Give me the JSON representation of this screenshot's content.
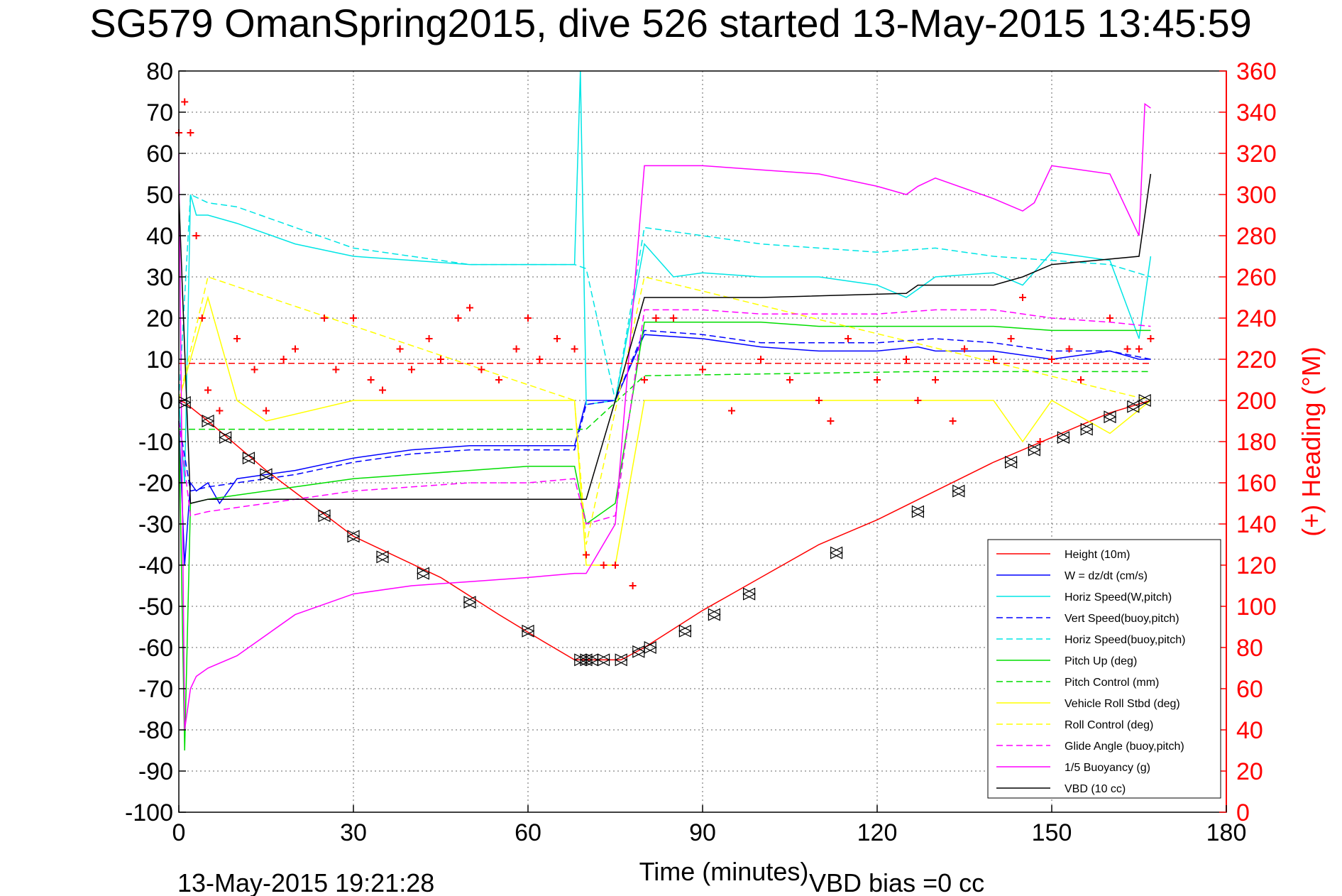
{
  "chart_data": {
    "type": "line",
    "title": "SG579 OmanSpring2015, dive 526 started 13-May-2015 13:45:59",
    "xlabel": "Time (minutes)",
    "ylabel": "",
    "ylabel_right": "(+) Heading (°M)",
    "footer_left": "13-May-2015 19:21:28",
    "footer_right": "VBD bias =0 cc",
    "xlim": [
      0,
      180
    ],
    "ylim": [
      -100,
      80
    ],
    "ylim_right": [
      0,
      360
    ],
    "x_ticks": [
      "0",
      "30",
      "60",
      "90",
      "120",
      "150",
      "180"
    ],
    "y_ticks": [
      "80",
      "70",
      "60",
      "50",
      "40",
      "30",
      "20",
      "10",
      "0",
      "-10",
      "-20",
      "-30",
      "-40",
      "-50",
      "-60",
      "-70",
      "-80",
      "-90",
      "-100"
    ],
    "y_ticks_right": [
      "360",
      "340",
      "320",
      "300",
      "280",
      "260",
      "240",
      "220",
      "200",
      "180",
      "160",
      "140",
      "120",
      "100",
      "80",
      "60",
      "40",
      "20",
      "0"
    ],
    "grid": true,
    "legend_position": "bottom-right",
    "series": [
      {
        "name": "Height (10m)",
        "color": "#ff0000",
        "style": "solid",
        "x": [
          0,
          1,
          5,
          15,
          30,
          45,
          55,
          62,
          68,
          70,
          73,
          76,
          80,
          90,
          100,
          110,
          120,
          130,
          140,
          150,
          160,
          167
        ],
        "y": [
          0,
          -0.5,
          -5,
          -17,
          -33,
          -43,
          -52,
          -58,
          -63,
          -63,
          -63,
          -63,
          -60,
          -51,
          -43,
          -35,
          -29,
          -22,
          -15,
          -9,
          -3,
          0
        ]
      },
      {
        "name": "W = dz/dt (cm/s)",
        "color": "#0000ff",
        "style": "solid",
        "x": [
          0,
          1,
          2,
          3,
          5,
          7,
          10,
          20,
          30,
          40,
          50,
          60,
          68,
          70,
          75,
          80,
          90,
          100,
          110,
          120,
          127,
          130,
          140,
          150,
          160,
          165,
          167
        ],
        "y": [
          -5,
          -40,
          -20,
          -22,
          -20,
          -25,
          -19,
          -17,
          -14,
          -12,
          -11,
          -11,
          -11,
          0,
          0,
          16,
          15,
          13,
          12,
          12,
          13,
          12,
          12,
          10,
          12,
          10,
          10
        ]
      },
      {
        "name": "Horiz Speed(W,pitch)",
        "color": "#00e5e5",
        "style": "solid",
        "x": [
          0,
          1,
          2,
          3,
          5,
          10,
          20,
          30,
          40,
          50,
          60,
          68,
          69,
          70,
          75,
          80,
          85,
          90,
          100,
          110,
          120,
          125,
          130,
          140,
          145,
          150,
          160,
          165,
          167
        ],
        "y": [
          0,
          -20,
          50,
          45,
          45,
          43,
          38,
          35,
          34,
          33,
          33,
          33,
          80,
          -1,
          0,
          38,
          30,
          31,
          30,
          30,
          28,
          25,
          30,
          31,
          28,
          36,
          34,
          15,
          35
        ]
      },
      {
        "name": "Vert Speed(buoy,pitch)",
        "color": "#0000ff",
        "style": "dashed",
        "x": [
          0,
          2,
          5,
          10,
          20,
          30,
          40,
          50,
          60,
          68,
          70,
          75,
          80,
          90,
          100,
          110,
          120,
          130,
          140,
          150,
          160,
          167
        ],
        "y": [
          -5,
          -22,
          -21,
          -20,
          -18,
          -15,
          -13,
          -12,
          -12,
          -12,
          -1,
          0,
          17,
          16,
          14,
          14,
          14,
          15,
          14,
          12,
          12,
          10
        ]
      },
      {
        "name": "Horiz Speed(buoy,pitch)",
        "color": "#00e5e5",
        "style": "dashed",
        "x": [
          0,
          2,
          5,
          10,
          20,
          30,
          40,
          50,
          60,
          68,
          70,
          75,
          80,
          90,
          100,
          110,
          120,
          130,
          140,
          150,
          160,
          167
        ],
        "y": [
          0,
          50,
          48,
          47,
          42,
          37,
          35,
          33,
          33,
          33,
          32,
          0,
          42,
          40,
          38,
          37,
          36,
          37,
          35,
          34,
          33,
          30
        ]
      },
      {
        "name": "Pitch Up (deg)",
        "color": "#00dd00",
        "style": "solid",
        "x": [
          0,
          1,
          2,
          5,
          10,
          20,
          30,
          40,
          50,
          60,
          68,
          70,
          75,
          80,
          90,
          100,
          110,
          120,
          130,
          140,
          150,
          160,
          167
        ],
        "y": [
          -5,
          -85,
          -25,
          -24,
          -23,
          -21,
          -19,
          -18,
          -17,
          -16,
          -16,
          -30,
          -25,
          19,
          19,
          19,
          18,
          18,
          18,
          18,
          17,
          17,
          17
        ]
      },
      {
        "name": "Pitch Control (mm)",
        "color": "#00dd00",
        "style": "dashed",
        "x": [
          0,
          5,
          68,
          70,
          80,
          127,
          167
        ],
        "y": [
          -7,
          -7,
          -7,
          -7,
          6,
          7,
          7
        ]
      },
      {
        "name": "Vehicle Roll Stbd (deg)",
        "color": "#ffff00",
        "style": "solid",
        "x": [
          0,
          5,
          10,
          15,
          30,
          50,
          60,
          68,
          70,
          75,
          80,
          90,
          100,
          120,
          140,
          145,
          150,
          160,
          167
        ],
        "y": [
          0,
          25,
          0,
          -5,
          0,
          0,
          0,
          0,
          -40,
          -40,
          0,
          0,
          0,
          0,
          0,
          -10,
          0,
          -8,
          0
        ]
      },
      {
        "name": "Roll Control (deg)",
        "color": "#ffff00",
        "style": "dashed",
        "x": [
          0,
          5,
          68,
          70,
          80,
          167
        ],
        "y": [
          0,
          30,
          0,
          -35,
          30,
          0
        ]
      },
      {
        "name": "Glide Angle (buoy,pitch)",
        "color": "#ff00ff",
        "style": "dashed",
        "x": [
          0,
          2,
          5,
          10,
          20,
          30,
          40,
          50,
          60,
          68,
          70,
          75,
          80,
          90,
          100,
          110,
          120,
          130,
          140,
          150,
          160,
          167
        ],
        "y": [
          -5,
          -28,
          -27,
          -26,
          -24,
          -22,
          -21,
          -20,
          -20,
          -19,
          -30,
          -28,
          22,
          22,
          21,
          21,
          21,
          22,
          22,
          20,
          19,
          18
        ]
      },
      {
        "name": "1/5 Buoyancy (g)",
        "color": "#ff00ff",
        "style": "solid",
        "x": [
          0,
          1,
          2,
          3,
          5,
          10,
          20,
          30,
          40,
          50,
          60,
          68,
          70,
          75,
          80,
          90,
          100,
          110,
          120,
          125,
          127,
          130,
          140,
          145,
          147,
          150,
          160,
          165,
          166,
          167
        ],
        "y": [
          60,
          -80,
          -70,
          -67,
          -65,
          -62,
          -52,
          -47,
          -45,
          -44,
          -43,
          -42,
          -42,
          -30,
          57,
          57,
          56,
          55,
          52,
          50,
          52,
          54,
          49,
          46,
          48,
          57,
          55,
          40,
          72,
          71
        ]
      },
      {
        "name": "VBD (10 cc)",
        "color": "#000000",
        "style": "solid",
        "x": [
          0,
          2,
          5,
          68,
          70,
          75,
          80,
          100,
          125,
          127,
          140,
          145,
          150,
          165,
          167
        ],
        "y": [
          50,
          -25,
          -24,
          -24,
          -24,
          0,
          25,
          25,
          26,
          28,
          28,
          30,
          33,
          35,
          55
        ]
      }
    ],
    "heading": {
      "name": "Heading",
      "color": "#ff0000",
      "marker": "+",
      "mean": 218,
      "x": [
        0,
        1,
        2,
        3,
        4,
        5,
        7,
        10,
        13,
        15,
        18,
        20,
        25,
        27,
        30,
        33,
        35,
        38,
        40,
        43,
        45,
        48,
        50,
        52,
        55,
        58,
        60,
        62,
        65,
        68,
        70,
        73,
        75,
        78,
        80,
        82,
        85,
        90,
        95,
        100,
        105,
        110,
        112,
        115,
        120,
        125,
        127,
        130,
        133,
        135,
        140,
        143,
        145,
        148,
        150,
        153,
        155,
        160,
        163,
        165,
        167
      ],
      "y": [
        330,
        345,
        330,
        280,
        240,
        205,
        195,
        230,
        215,
        195,
        220,
        225,
        240,
        215,
        240,
        210,
        205,
        225,
        215,
        230,
        220,
        240,
        245,
        215,
        210,
        225,
        240,
        220,
        230,
        225,
        125,
        120,
        120,
        110,
        210,
        240,
        240,
        215,
        195,
        220,
        210,
        200,
        190,
        230,
        210,
        220,
        200,
        210,
        190,
        225,
        220,
        230,
        250,
        180,
        220,
        225,
        210,
        240,
        225,
        225,
        230
      ]
    },
    "markers": {
      "name": "depth markers",
      "x": [
        1,
        5,
        8,
        12,
        15,
        25,
        30,
        35,
        42,
        50,
        60,
        69,
        70,
        71,
        73,
        76,
        79,
        81,
        87,
        92,
        98,
        113,
        127,
        134,
        143,
        147,
        152,
        156,
        160,
        164,
        166
      ],
      "y": [
        -0.5,
        -5,
        -9,
        -14,
        -18,
        -28,
        -33,
        -38,
        -42,
        -49,
        -56,
        -63,
        -63,
        -63,
        -63,
        -63,
        -61,
        -60,
        -56,
        -52,
        -47,
        -37,
        -27,
        -22,
        -15,
        -12,
        -9,
        -7,
        -4,
        -1.5,
        0
      ]
    }
  }
}
